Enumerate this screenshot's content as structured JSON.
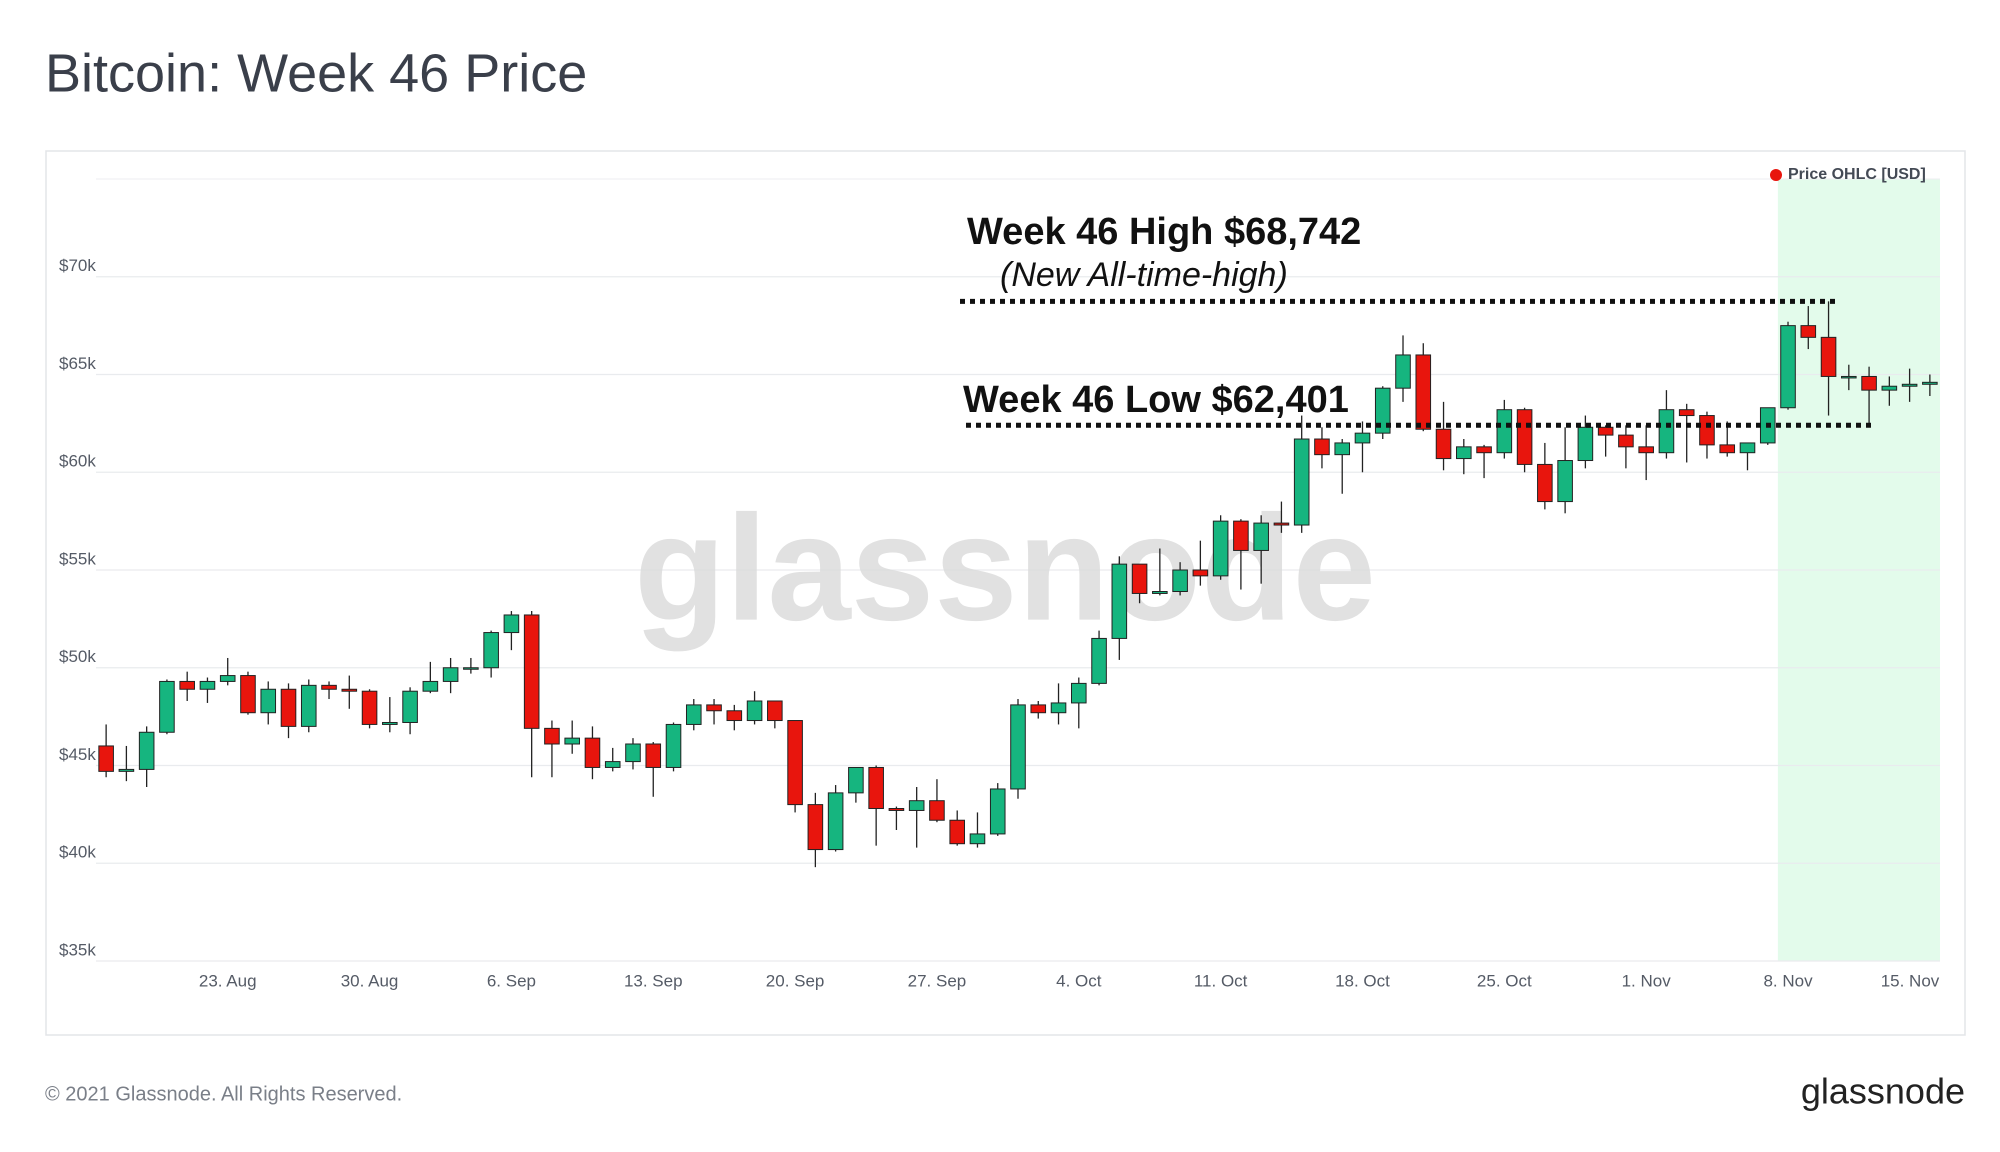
{
  "chart_data": {
    "type": "candlestick",
    "title": "Bitcoin: Week 46 Price",
    "categories": [
      null,
      null,
      null,
      null,
      null,
      null,
      "23. Aug",
      null,
      null,
      null,
      null,
      null,
      null,
      "30. Aug",
      null,
      null,
      null,
      null,
      null,
      null,
      "6. Sep",
      null,
      null,
      null,
      null,
      null,
      null,
      "13. Sep",
      null,
      null,
      null,
      null,
      null,
      null,
      "20. Sep",
      null,
      null,
      null,
      null,
      null,
      null,
      "27. Sep",
      null,
      null,
      null,
      null,
      null,
      null,
      "4. Oct",
      null,
      null,
      null,
      null,
      null,
      null,
      "11. Oct",
      null,
      null,
      null,
      null,
      null,
      null,
      "18. Oct",
      null,
      null,
      null,
      null,
      null,
      null,
      "25. Oct",
      null,
      null,
      null,
      null,
      null,
      null,
      "1. Nov",
      null,
      null,
      null,
      null,
      null,
      null,
      "8. Nov",
      null,
      null,
      null,
      null,
      null,
      null,
      "15. Nov"
    ],
    "series": [
      {
        "name": "Price OHLC [USD]",
        "color": "#e8150d",
        "open": [
          46000,
          44700,
          44800,
          46700,
          49300,
          48900,
          49300,
          49600,
          47700,
          48900,
          47000,
          49100,
          48900,
          48800,
          47100,
          47200,
          48800,
          49300,
          50000,
          50000,
          51800,
          52700,
          46900,
          46100,
          46400,
          44900,
          45200,
          46100,
          44900,
          47100,
          48100,
          47800,
          47300,
          48300,
          47300,
          43000,
          40700,
          43600,
          44900,
          42800,
          42700,
          43200,
          42200,
          41000,
          41500,
          43800,
          48100,
          47700,
          48200,
          49200,
          51500,
          55300,
          53800,
          53900,
          55000,
          54700,
          57500,
          56000,
          57400,
          57300,
          61700,
          60900,
          61500,
          62000,
          64300,
          66000,
          62200,
          60700,
          61300,
          61000,
          63200,
          60400,
          58500,
          60600,
          62300,
          61900,
          61300,
          61000,
          63200,
          62900,
          61400,
          61000,
          61500,
          63300,
          67500,
          66900,
          64900,
          64900,
          64200,
          64400,
          64500
        ],
        "high": [
          47100,
          46000,
          47000,
          49400,
          49800,
          49500,
          50500,
          49800,
          49300,
          49200,
          49400,
          49300,
          49600,
          48900,
          48500,
          49000,
          50300,
          50500,
          50500,
          51900,
          52900,
          52900,
          47300,
          47300,
          47000,
          45900,
          46400,
          46200,
          47200,
          48400,
          48400,
          48100,
          48800,
          48300,
          47300,
          43600,
          44000,
          44900,
          45000,
          42900,
          43900,
          44300,
          42700,
          42600,
          44100,
          48400,
          48300,
          49200,
          49500,
          51900,
          55700,
          55300,
          56100,
          55400,
          56500,
          57800,
          57600,
          57800,
          58500,
          62900,
          62300,
          61700,
          62600,
          64400,
          67000,
          66600,
          63600,
          61700,
          61400,
          63700,
          63300,
          61500,
          62300,
          62900,
          62400,
          62400,
          62400,
          64200,
          63500,
          63100,
          62600,
          61500,
          63300,
          67700,
          68500,
          68742,
          65500,
          65400,
          64900,
          65300,
          65000
        ],
        "low": [
          44400,
          44200,
          43900,
          46600,
          48300,
          48200,
          49100,
          47600,
          47100,
          46400,
          46700,
          48400,
          47900,
          46900,
          46700,
          46600,
          48700,
          48700,
          49700,
          49500,
          50900,
          44400,
          44400,
          45600,
          44300,
          44700,
          44800,
          43400,
          44700,
          46800,
          47100,
          46800,
          47100,
          46900,
          42600,
          39800,
          40600,
          43100,
          40900,
          41700,
          40800,
          42100,
          40900,
          40800,
          41400,
          43300,
          47400,
          47100,
          46900,
          49100,
          50400,
          53300,
          53700,
          53700,
          54200,
          54500,
          54000,
          54300,
          56900,
          56900,
          60200,
          58900,
          60000,
          61700,
          63600,
          62100,
          60100,
          59900,
          59700,
          60700,
          60000,
          58100,
          57900,
          60200,
          60800,
          60200,
          59600,
          60700,
          60500,
          60700,
          60800,
          60100,
          61400,
          63200,
          66300,
          62900,
          64200,
          62401,
          63400,
          63600,
          63900
        ],
        "close": [
          44700,
          44800,
          46700,
          49300,
          48900,
          49300,
          49600,
          47700,
          48900,
          47000,
          49100,
          48900,
          48800,
          47100,
          47200,
          48800,
          49300,
          50000,
          50000,
          51800,
          52700,
          46900,
          46100,
          46400,
          44900,
          45200,
          46100,
          44900,
          47100,
          48100,
          47800,
          47300,
          48300,
          47300,
          43000,
          40700,
          43600,
          44900,
          42800,
          42700,
          43200,
          42200,
          41000,
          41500,
          43800,
          48100,
          47700,
          48200,
          49200,
          51500,
          55300,
          53800,
          53900,
          55000,
          54700,
          57500,
          56000,
          57400,
          57300,
          61700,
          60900,
          61500,
          62000,
          64300,
          66000,
          62200,
          60700,
          61300,
          61000,
          63200,
          60400,
          58500,
          60600,
          62300,
          61900,
          61300,
          61000,
          63200,
          62900,
          61400,
          61000,
          61500,
          63300,
          67500,
          66900,
          64900,
          64900,
          64200,
          64400,
          64500,
          64600
        ]
      }
    ],
    "up_color": "#16b57f",
    "down_color": "#e8150d",
    "ylim": [
      35000,
      75000
    ],
    "yticks": [
      {
        "value": 35000,
        "label": "$35k"
      },
      {
        "value": 40000,
        "label": "$40k"
      },
      {
        "value": 45000,
        "label": "$45k"
      },
      {
        "value": 50000,
        "label": "$50k"
      },
      {
        "value": 55000,
        "label": "$55k"
      },
      {
        "value": 60000,
        "label": "$60k"
      },
      {
        "value": 65000,
        "label": "$65k"
      },
      {
        "value": 70000,
        "label": "$70k"
      }
    ],
    "grid": true,
    "annotations": [
      {
        "text": "Week 46 High $68,742",
        "subtext": "(New All-time-high)",
        "value": 68742
      },
      {
        "text": "Week 46 Low $62,401",
        "value": 62401
      }
    ],
    "watermark": "glassnode"
  },
  "footer": {
    "copyright": "© 2021 Glassnode. All Rights Reserved.",
    "logo": "glassnode"
  }
}
